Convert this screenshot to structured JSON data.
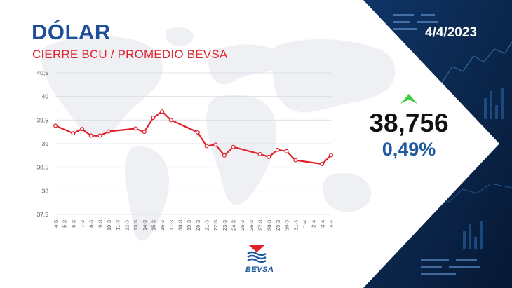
{
  "header": {
    "title": "DÓLAR",
    "subtitle": "CIERRE BCU / PROMEDIO BEVSA",
    "date": "4/4/2023"
  },
  "quote": {
    "value": "38,756",
    "change": "0,49%",
    "direction": "up",
    "arrow_color": "#3ec93e"
  },
  "logo": {
    "text": "BEVSA",
    "icon": "bevsa-logo-icon"
  },
  "colors": {
    "title": "#1f4e9a",
    "subtitle": "#e0202a",
    "line": "#e0202a",
    "panel": "#0c2850",
    "change": "#1f5aa0"
  },
  "chart_data": {
    "type": "line",
    "title": "",
    "xlabel": "",
    "ylabel": "",
    "grid": true,
    "ylim": [
      37.5,
      40.5
    ],
    "yticks": [
      "37,5",
      "38",
      "38,5",
      "39",
      "39,5",
      "40",
      "40,5"
    ],
    "ytick_values": [
      37.5,
      38,
      38.5,
      39,
      39.5,
      40,
      40.5
    ],
    "categories": [
      "4-3",
      "5-3",
      "6-3",
      "7-3",
      "8-3",
      "9-3",
      "10-3",
      "11-3",
      "12-3",
      "13-3",
      "14-3",
      "15-3",
      "16-3",
      "17-3",
      "18-3",
      "19-3",
      "20-3",
      "21-3",
      "22-3",
      "23-3",
      "24-3",
      "25-3",
      "26-3",
      "27-3",
      "28-3",
      "29-3",
      "30-3",
      "31-3",
      "1-4",
      "2-4",
      "3-4",
      "4-4"
    ],
    "series": [
      {
        "points": [
          {
            "x": "4-3",
            "y": 39.38
          },
          {
            "x": "6-3",
            "y": 39.22
          },
          {
            "x": "7-3",
            "y": 39.31
          },
          {
            "x": "8-3",
            "y": 39.17
          },
          {
            "x": "9-3",
            "y": 39.17
          },
          {
            "x": "10-3",
            "y": 39.26
          },
          {
            "x": "13-3",
            "y": 39.32
          },
          {
            "x": "14-3",
            "y": 39.25
          },
          {
            "x": "15-3",
            "y": 39.55
          },
          {
            "x": "16-3",
            "y": 39.68
          },
          {
            "x": "17-3",
            "y": 39.5
          },
          {
            "x": "20-3",
            "y": 39.24
          },
          {
            "x": "21-3",
            "y": 38.95
          },
          {
            "x": "22-3",
            "y": 38.98
          },
          {
            "x": "23-3",
            "y": 38.75
          },
          {
            "x": "24-3",
            "y": 38.93
          },
          {
            "x": "27-3",
            "y": 38.78
          },
          {
            "x": "28-3",
            "y": 38.72
          },
          {
            "x": "29-3",
            "y": 38.87
          },
          {
            "x": "30-3",
            "y": 38.84
          },
          {
            "x": "31-3",
            "y": 38.65
          },
          {
            "x": "3-4",
            "y": 38.57
          },
          {
            "x": "4-4",
            "y": 38.756
          }
        ]
      }
    ]
  }
}
